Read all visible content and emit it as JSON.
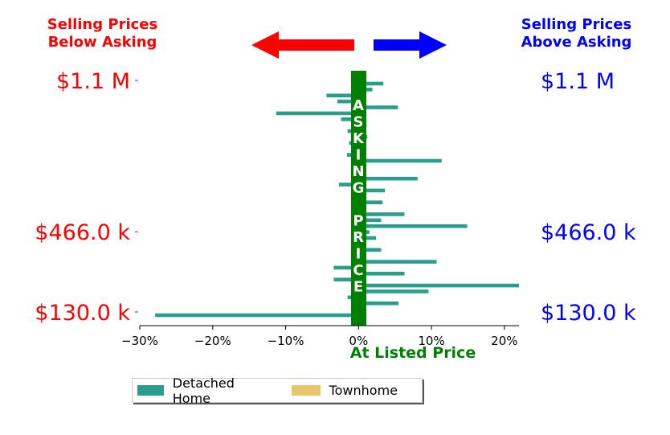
{
  "annotations": {
    "below_asking": "Selling Prices\nBelow Asking",
    "above_asking": "Selling Prices\nAbove Asking",
    "asking_price_letters": [
      "A",
      "S",
      "K",
      "I",
      "N",
      "G",
      "",
      "P",
      "R",
      "I",
      "C",
      "E"
    ],
    "at_listed_price": "At Listed Price"
  },
  "colors": {
    "below": "#ff0000",
    "above": "#0000ff",
    "asking_band": "#008000",
    "detached": "#2a9d8f",
    "townhome": "#e9c46a"
  },
  "legend": {
    "detached": "Detached Home",
    "townhome": "Townhome"
  },
  "chart_data": {
    "type": "bar",
    "orientation": "horizontal",
    "xlim": [
      -30,
      22
    ],
    "x_ticks": [
      "−30%",
      "−20%",
      "−10%",
      "0%",
      "10%",
      "20%"
    ],
    "x_tick_values": [
      -30,
      -20,
      -10,
      0,
      10,
      20
    ],
    "y_ticks_left": [
      "$1.1 M",
      "$466.0 k",
      "$130.0 k"
    ],
    "y_ticks_right": [
      "$1.1 M",
      "$466.0 k",
      "$130.0 k"
    ],
    "ylim_price": [
      130000,
      1100000
    ],
    "y_tick_prices": [
      1100000,
      466000,
      130000
    ],
    "series": [
      {
        "name": "Detached Home",
        "values": [
          3.4,
          1.9,
          -4.4,
          -2.9,
          5.4,
          -11.3,
          -2.4,
          1.1,
          -1.5,
          1.2,
          -1.3,
          0.7,
          -1.6,
          11.4,
          0.7,
          0.8,
          8.1,
          -2.7,
          3.6,
          0.8,
          3.3,
          0.8,
          6.3,
          3.1,
          14.9,
          1.5,
          2.4,
          0.8,
          3.1,
          0.7,
          10.7,
          -3.4,
          6.3,
          -3.4,
          22.0,
          9.6,
          -1.5,
          5.5,
          1.0,
          -27.9
        ]
      },
      {
        "name": "Townhome",
        "values": []
      }
    ]
  }
}
